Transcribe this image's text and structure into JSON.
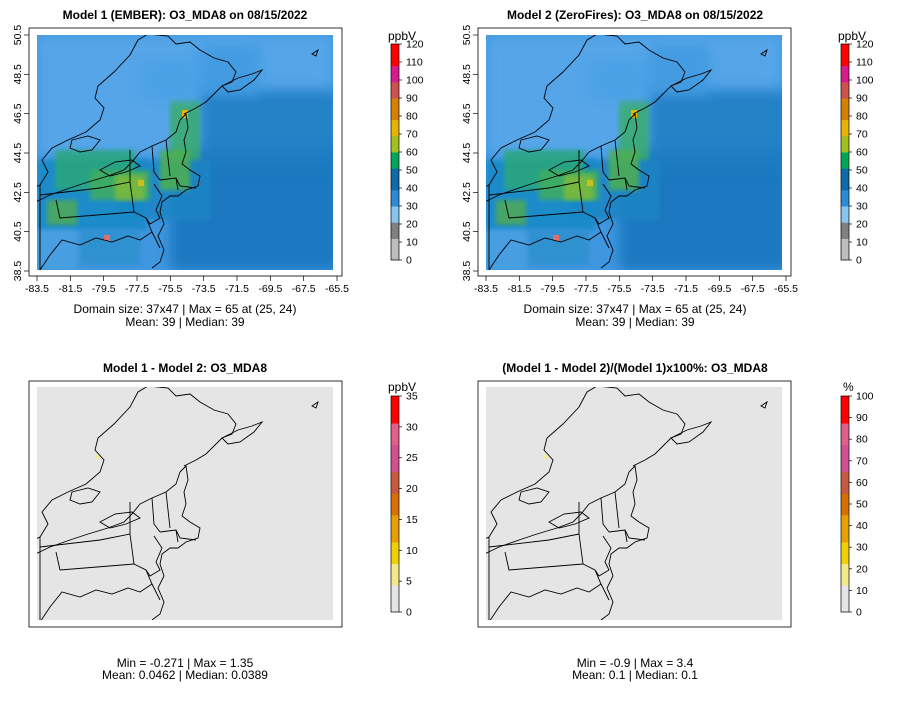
{
  "chart_data": [
    {
      "type": "heatmap",
      "title": "Model 1 (EMBER): O3_MDA8 on 08/15/2022",
      "unit": "ppbV",
      "colorbar_range": [
        0,
        120
      ],
      "colorbar_ticks": [
        "120",
        "110",
        "100",
        "90",
        "80",
        "70",
        "60",
        "50",
        "40",
        "30",
        "20",
        "10",
        "0"
      ],
      "x_ticks": [
        "-83.5",
        "-81.5",
        "-79.5",
        "-77.5",
        "-75.5",
        "-73.5",
        "-71.5",
        "-69.5",
        "-67.5",
        "-65.5"
      ],
      "y_ticks": [
        "38.5",
        "40.5",
        "42.5",
        "44.5",
        "46.5",
        "48.5",
        "50.5"
      ],
      "xlim": [
        -83.5,
        -65.5
      ],
      "ylim": [
        38.5,
        50.5
      ],
      "stats_line1": "Domain size: 37x47 | Max = 65 at (25, 24)",
      "stats_line2": "Mean: 39 |  Median: 39",
      "palette": [
        "#bdbdbd",
        "#808080",
        "#86c5ef",
        "#2c8ad6",
        "#0f6aa9",
        "#00a65a",
        "#a0c020",
        "#e8b400",
        "#d48000",
        "#d05050",
        "#d81a8c",
        "#ff0000"
      ]
    },
    {
      "type": "heatmap",
      "title": "Model 2 (ZeroFires): O3_MDA8 on 08/15/2022",
      "unit": "ppbV",
      "colorbar_range": [
        0,
        120
      ],
      "colorbar_ticks": [
        "120",
        "110",
        "100",
        "90",
        "80",
        "70",
        "60",
        "50",
        "40",
        "30",
        "20",
        "10",
        "0"
      ],
      "x_ticks": [
        "-83.5",
        "-81.5",
        "-79.5",
        "-77.5",
        "-75.5",
        "-73.5",
        "-71.5",
        "-69.5",
        "-67.5",
        "-65.5"
      ],
      "y_ticks": [
        "38.5",
        "40.5",
        "42.5",
        "44.5",
        "46.5",
        "48.5",
        "50.5"
      ],
      "xlim": [
        -83.5,
        -65.5
      ],
      "ylim": [
        38.5,
        50.5
      ],
      "stats_line1": "Domain size: 37x47 | Max = 65 at (25, 24)",
      "stats_line2": "Mean: 39 |  Median: 39",
      "palette": [
        "#bdbdbd",
        "#808080",
        "#86c5ef",
        "#2c8ad6",
        "#0f6aa9",
        "#00a65a",
        "#a0c020",
        "#e8b400",
        "#d48000",
        "#d05050",
        "#d81a8c",
        "#ff0000"
      ]
    },
    {
      "type": "heatmap",
      "title": "Model 1 - Model 2: O3_MDA8",
      "unit": "ppbV",
      "colorbar_range": [
        0,
        35
      ],
      "colorbar_ticks": [
        "35",
        "30",
        "25",
        "20",
        "15",
        "10",
        "5",
        "0"
      ],
      "stats_line1": "Min = -0.271 | Max = 1.35",
      "stats_line2": "Mean: 0.0462 |  Median: 0.0389",
      "fill_color": "#e5e5e5",
      "palette": [
        "#e5e5e5",
        "#f3e98a",
        "#f0d000",
        "#e8a000",
        "#d87000",
        "#c85a40",
        "#d05090",
        "#e0608a",
        "#ff0000"
      ]
    },
    {
      "type": "heatmap",
      "title": "(Model 1 - Model 2)/(Model 1)x100%: O3_MDA8",
      "unit": "%",
      "colorbar_range": [
        0,
        100
      ],
      "colorbar_ticks": [
        "100",
        "90",
        "80",
        "70",
        "60",
        "50",
        "40",
        "30",
        "20",
        "10",
        "0"
      ],
      "stats_line1": "Min = -0.9 | Max = 3.4",
      "stats_line2": "Mean: 0.1 |  Median: 0.1",
      "fill_color": "#e5e5e5",
      "palette": [
        "#e5e5e5",
        "#f3e98a",
        "#f0d000",
        "#e8a000",
        "#d87000",
        "#c85a40",
        "#d05090",
        "#e0608a",
        "#ff0000"
      ]
    }
  ]
}
